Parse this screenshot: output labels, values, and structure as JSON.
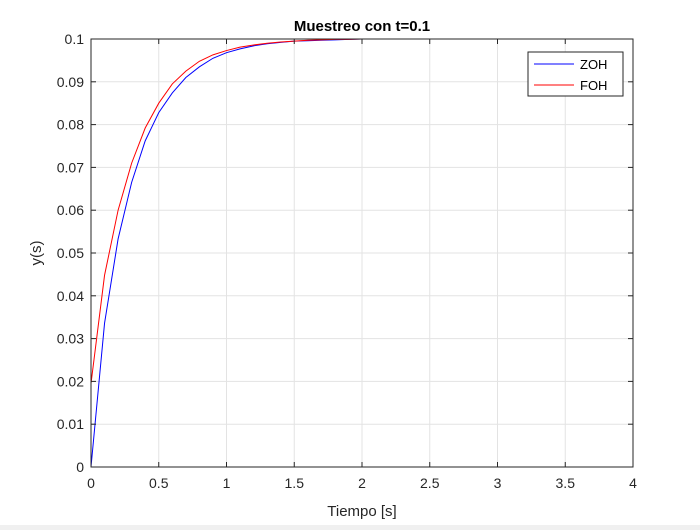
{
  "chart_data": {
    "type": "line",
    "title": "Muestreo con t=0.1",
    "xlabel": "Tiempo [s]",
    "ylabel": "y(s)",
    "xlim": [
      0,
      4
    ],
    "ylim": [
      0,
      0.1
    ],
    "grid": true,
    "legend_position": "top-right",
    "x_ticks": [
      "0",
      "0.5",
      "1",
      "1.5",
      "2",
      "2.5",
      "3",
      "3.5",
      "4"
    ],
    "y_ticks": [
      "0",
      "0.01",
      "0.02",
      "0.03",
      "0.04",
      "0.05",
      "0.06",
      "0.07",
      "0.08",
      "0.09",
      "0.1"
    ],
    "x": [
      0,
      0.1,
      0.2,
      0.3,
      0.4,
      0.5,
      0.6,
      0.7,
      0.8,
      0.9,
      1.0,
      1.1,
      1.2,
      1.3,
      1.4,
      1.5,
      1.6,
      1.7,
      1.8,
      1.9,
      2.0,
      2.5,
      3.0,
      3.5,
      4.0
    ],
    "series": [
      {
        "name": "ZOH",
        "color": "#0000ff",
        "values": [
          0,
          0.0336,
          0.0533,
          0.0665,
          0.0762,
          0.0828,
          0.0874,
          0.091,
          0.0935,
          0.0955,
          0.0968,
          0.0977,
          0.0984,
          0.0989,
          0.0992,
          0.0995,
          0.0996,
          0.0997,
          0.0998,
          0.0999,
          0.1,
          0.1,
          0.1,
          0.1,
          0.1
        ]
      },
      {
        "name": "FOH",
        "color": "#ff0000",
        "values": [
          0.0195,
          0.0448,
          0.06,
          0.071,
          0.0792,
          0.085,
          0.0895,
          0.0925,
          0.0948,
          0.0963,
          0.0973,
          0.0981,
          0.0986,
          0.099,
          0.0993,
          0.0995,
          0.0997,
          0.0998,
          0.0999,
          0.0999,
          0.1,
          0.1,
          0.1,
          0.1,
          0.1
        ]
      }
    ]
  }
}
